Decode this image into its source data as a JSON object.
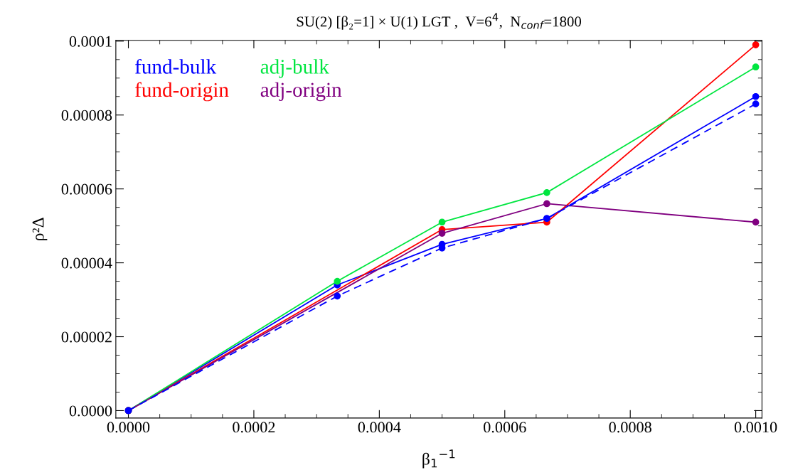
{
  "chart_data": {
    "type": "line",
    "title": "SU(2) [β₂=1] × U(1) LGT ,  V=6$^{4}$,  N$_{conf}$=1800",
    "xlabel": "β$_{1}$$^{−1}$",
    "ylabel": "ρ²Δ",
    "x": [
      0,
      0.000333,
      0.0005,
      0.000667,
      0.001
    ],
    "series": [
      {
        "name": "fund-bulk",
        "color": "#0000ff",
        "values": [
          0,
          3.4e-05,
          4.5e-05,
          5.2e-05,
          8.5e-05
        ]
      },
      {
        "name": "fund-origin",
        "color": "#ff0000",
        "x": [
          0,
          0.0005,
          0.000667,
          0.001
        ],
        "values": [
          0,
          4.9e-05,
          5.1e-05,
          9.9e-05
        ]
      },
      {
        "name": "adj-bulk",
        "color": "#00e640",
        "values": [
          0,
          3.5e-05,
          5.1e-05,
          5.9e-05,
          9.3e-05
        ]
      },
      {
        "name": "adj-origin",
        "color": "#800080",
        "x": [
          0,
          0.0005,
          0.000667,
          0.001
        ],
        "values": [
          0,
          4.8e-05,
          5.6e-05,
          5.1e-05
        ]
      },
      {
        "color": "#0000ff",
        "line_style": "dashed",
        "values": [
          0,
          3.1e-05,
          4.4e-05,
          5.2e-05,
          8.3e-05
        ]
      }
    ],
    "xlim": [
      -2e-05,
      0.00101
    ],
    "ylim": [
      -2e-06,
      0.0001002
    ],
    "xticks": [
      {
        "value": 0,
        "label": "0.0000"
      },
      {
        "value": 0.0002,
        "label": "0.0002"
      },
      {
        "value": 0.0004,
        "label": "0.0004"
      },
      {
        "value": 0.0006,
        "label": "0.0006"
      },
      {
        "value": 0.0008,
        "label": "0.0008"
      },
      {
        "value": 0.001,
        "label": "0.0010"
      }
    ],
    "yticks": [
      {
        "value": 0,
        "label": "0.0000"
      },
      {
        "value": 2e-05,
        "label": "0.00002"
      },
      {
        "value": 4e-05,
        "label": "0.00004"
      },
      {
        "value": 6e-05,
        "label": "0.00006"
      },
      {
        "value": 8e-05,
        "label": "0.00008"
      },
      {
        "value": 0.0001,
        "label": "0.0001"
      }
    ],
    "marker": "circle",
    "line_style": "solid",
    "grid": false,
    "legend": "top left"
  }
}
